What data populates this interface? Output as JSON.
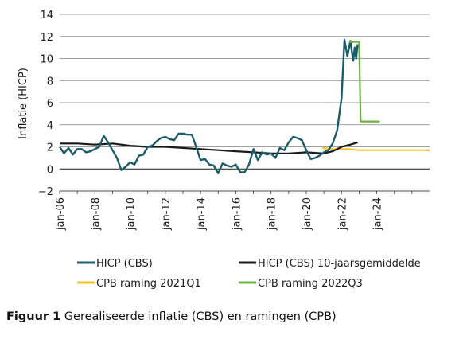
{
  "chart_data": {
    "type": "line",
    "ylabel": "Inflatie (HICP)",
    "ylim": [
      -2,
      14
    ],
    "y_ticks": [
      "14",
      "12",
      "10",
      "8",
      "6",
      "4",
      "2",
      "0",
      "−2"
    ],
    "y_tick_values": [
      14,
      12,
      10,
      8,
      6,
      4,
      2,
      0,
      -2
    ],
    "x_range": [
      "2006-01",
      "2027-01"
    ],
    "x_tick_labels": [
      "jan-06",
      "jan-08",
      "jan-10",
      "jan-12",
      "jan-14",
      "jan-16",
      "jan-18",
      "jan-20",
      "jan-22",
      "jan-24"
    ],
    "x_tick_years": [
      2006,
      2008,
      2010,
      2012,
      2014,
      2016,
      2018,
      2020,
      2022,
      2024
    ],
    "grid": "horizontal",
    "legend_position": "bottom",
    "series": [
      {
        "name": "HICP (CBS)",
        "color": "#1b5c6b",
        "x": [
          "2006-01",
          "2006-04",
          "2006-07",
          "2006-10",
          "2007-01",
          "2007-04",
          "2007-07",
          "2007-10",
          "2008-01",
          "2008-04",
          "2008-07",
          "2008-10",
          "2009-01",
          "2009-04",
          "2009-07",
          "2009-10",
          "2010-01",
          "2010-04",
          "2010-07",
          "2010-10",
          "2011-01",
          "2011-04",
          "2011-07",
          "2011-10",
          "2012-01",
          "2012-04",
          "2012-07",
          "2012-10",
          "2013-01",
          "2013-04",
          "2013-07",
          "2013-10",
          "2014-01",
          "2014-04",
          "2014-07",
          "2014-10",
          "2015-01",
          "2015-04",
          "2015-07",
          "2015-10",
          "2016-01",
          "2016-04",
          "2016-07",
          "2016-10",
          "2017-01",
          "2017-04",
          "2017-07",
          "2017-10",
          "2018-01",
          "2018-04",
          "2018-07",
          "2018-10",
          "2019-01",
          "2019-04",
          "2019-07",
          "2019-10",
          "2020-01",
          "2020-04",
          "2020-07",
          "2020-10",
          "2021-01",
          "2021-04",
          "2021-07",
          "2021-10",
          "2022-01",
          "2022-03",
          "2022-05",
          "2022-07",
          "2022-09",
          "2022-10",
          "2022-11",
          "2022-12"
        ],
        "y": [
          2.0,
          1.4,
          1.9,
          1.3,
          1.8,
          1.8,
          1.5,
          1.6,
          1.8,
          2.0,
          3.0,
          2.4,
          1.7,
          1.0,
          -0.1,
          0.2,
          0.6,
          0.4,
          1.2,
          1.3,
          2.0,
          2.1,
          2.5,
          2.8,
          2.9,
          2.7,
          2.6,
          3.2,
          3.2,
          3.1,
          3.1,
          2.0,
          0.8,
          0.9,
          0.4,
          0.3,
          -0.4,
          0.5,
          0.3,
          0.2,
          0.4,
          -0.3,
          -0.3,
          0.4,
          1.8,
          0.8,
          1.5,
          1.3,
          1.4,
          1.0,
          1.9,
          1.7,
          2.4,
          2.9,
          2.8,
          2.6,
          1.7,
          0.9,
          1.0,
          1.2,
          1.5,
          1.7,
          2.3,
          3.5,
          6.4,
          11.7,
          10.2,
          11.6,
          9.8,
          11.0,
          10.0,
          11.3
        ]
      },
      {
        "name": "HICP (CBS) 10-jaarsgemiddelde",
        "color": "#1a1a1a",
        "x": [
          "2006-01",
          "2007-01",
          "2008-01",
          "2009-01",
          "2010-01",
          "2011-01",
          "2012-01",
          "2013-01",
          "2014-01",
          "2015-01",
          "2016-01",
          "2017-01",
          "2018-01",
          "2019-01",
          "2020-01",
          "2021-01",
          "2021-07",
          "2022-01",
          "2022-07",
          "2022-12"
        ],
        "y": [
          2.3,
          2.3,
          2.2,
          2.3,
          2.1,
          2.0,
          2.0,
          1.9,
          1.8,
          1.7,
          1.6,
          1.5,
          1.4,
          1.4,
          1.5,
          1.4,
          1.6,
          2.0,
          2.2,
          2.4
        ]
      },
      {
        "name": "CPB raming 2021Q1",
        "color": "#f5c21a",
        "x": [
          "2020-12",
          "2021-06",
          "2022-01",
          "2022-06",
          "2023-01",
          "2027-01"
        ],
        "y": [
          1.9,
          1.8,
          1.8,
          1.8,
          1.7,
          1.7
        ]
      },
      {
        "name": "CPB raming 2022Q3",
        "color": "#69b43f",
        "x": [
          "2022-06",
          "2022-09",
          "2022-10",
          "2023-01",
          "2023-01",
          "2023-02",
          "2023-12",
          "2024-01",
          "2024-03"
        ],
        "y": [
          11.5,
          11.5,
          11.5,
          11.5,
          11.5,
          4.3,
          4.3,
          4.3,
          4.3
        ]
      }
    ]
  },
  "caption": {
    "bold": "Figuur 1",
    "text": "Gerealiseerde inflatie (CBS) en ramingen (CPB)"
  }
}
